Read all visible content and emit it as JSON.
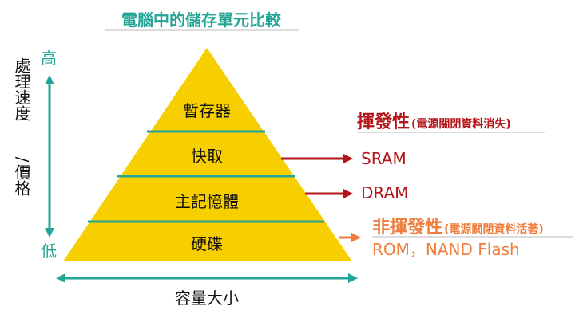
{
  "title": "電腦中的儲存單元比較",
  "pyramid": {
    "layers": [
      "暫存器",
      "快取",
      "主記憶體",
      "硬碟"
    ],
    "fill_color": "#f7cf00",
    "divider_color": "#22a596"
  },
  "axes": {
    "vertical_label_top": "處理速度",
    "vertical_label_sep": "/",
    "vertical_label_bottom": "價格",
    "high_label": "高",
    "low_label": "低",
    "horizontal_label": "容量大小",
    "arrow_color": "#22a596"
  },
  "volatile": {
    "heading": "揮發性",
    "note": "(電源關閉資料消失)",
    "color": "#b3151a"
  },
  "non_volatile": {
    "heading": "非揮發性",
    "note": "(電源關閉資料活著)",
    "color": "#ef7d3c"
  },
  "memory_types": {
    "sram": "SRAM",
    "dram": "DRAM",
    "rom_flash": "ROM，NAND Flash"
  }
}
